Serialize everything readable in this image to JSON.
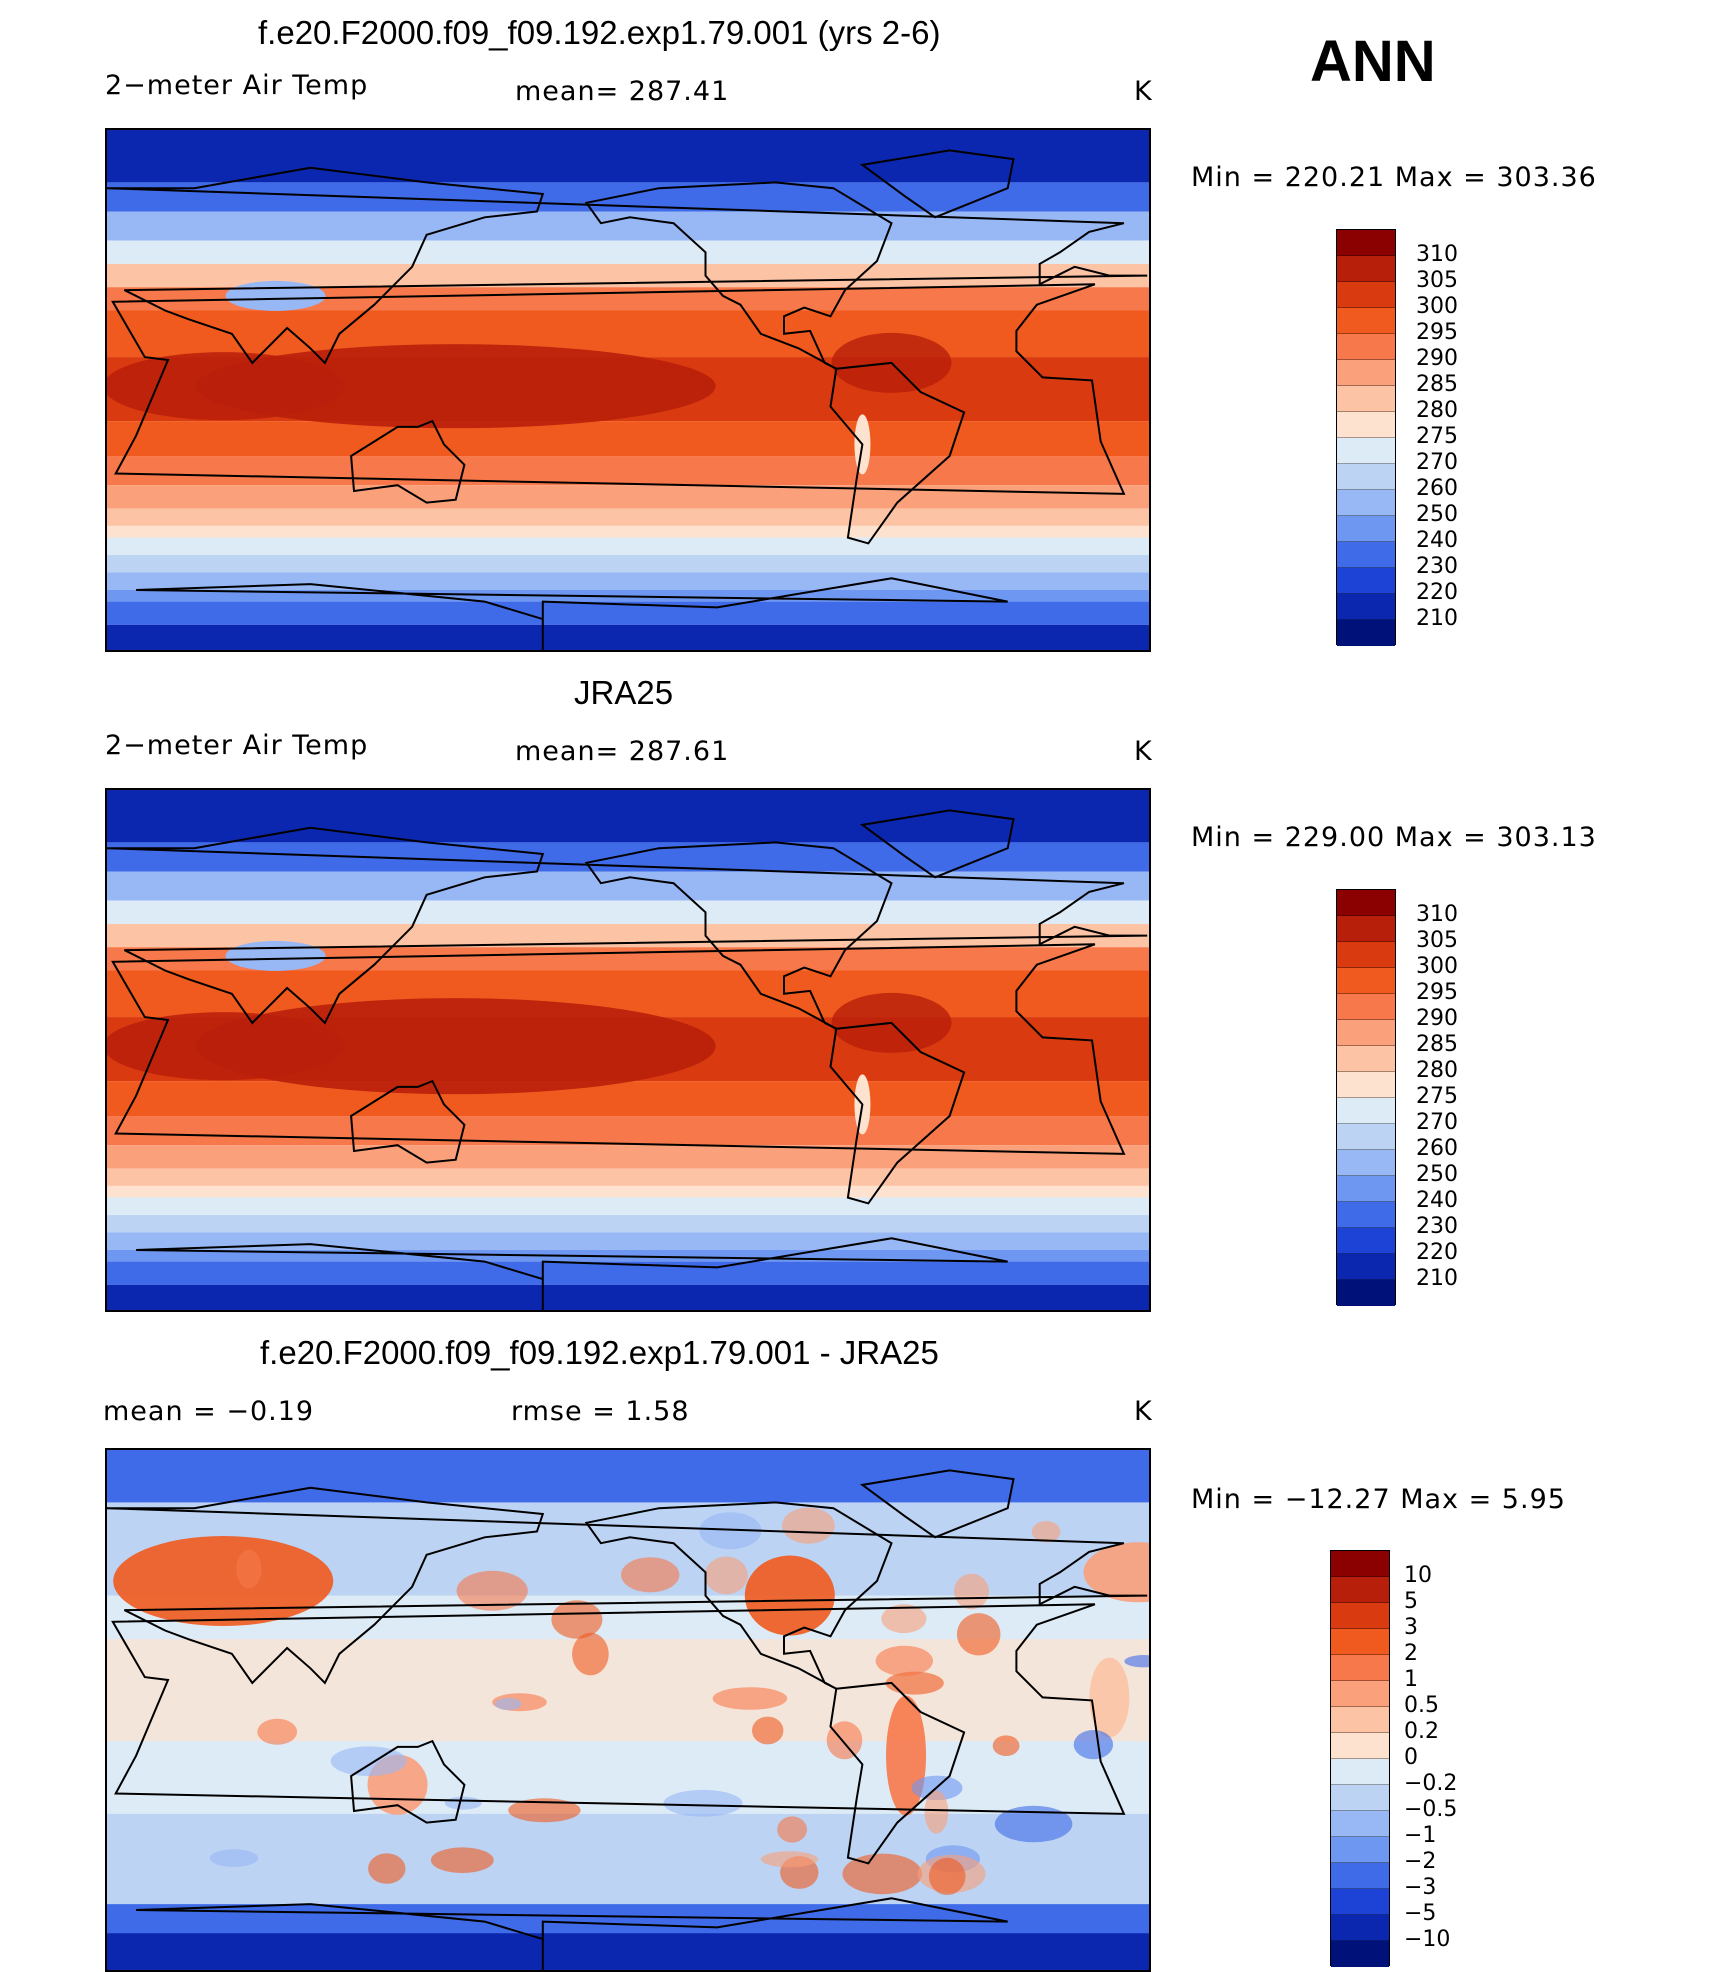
{
  "season_label": "ANN",
  "panels": [
    {
      "id": "model",
      "title": "f.e20.F2000.f09_f09.192.exp1.79.001 (yrs 2-6)",
      "left_label": "2−meter Air Temp",
      "center_label": "mean=  287.41",
      "units": "K",
      "minmax": "Min  =  220.21  Max  =  303.36",
      "legend_levels": [
        "310",
        "305",
        "300",
        "295",
        "290",
        "285",
        "280",
        "275",
        "270",
        "260",
        "250",
        "240",
        "230",
        "220",
        "210"
      ]
    },
    {
      "id": "obs",
      "title": "JRA25",
      "left_label": "2−meter Air Temp",
      "center_label": "mean=  287.61",
      "units": "K",
      "minmax": "Min  =  229.00  Max  =  303.13",
      "legend_levels": [
        "310",
        "305",
        "300",
        "295",
        "290",
        "285",
        "280",
        "275",
        "270",
        "260",
        "250",
        "240",
        "230",
        "220",
        "210"
      ]
    },
    {
      "id": "diff",
      "title": "f.e20.F2000.f09_f09.192.exp1.79.001 - JRA25",
      "left_label": "mean =    −0.19",
      "center_label": "rmse =     1.58",
      "units": "K",
      "minmax": "Min  =  −12.27  Max  =      5.95",
      "legend_levels": [
        "10",
        "5",
        "3",
        "2",
        "1",
        "0.5",
        "0.2",
        "0",
        "−0.2",
        "−0.5",
        "−1",
        "−2",
        "−3",
        "−5",
        "−10"
      ]
    }
  ],
  "colors": {
    "scale": [
      "#8b0000",
      "#b81f0a",
      "#d93a0f",
      "#f05a1e",
      "#f7784a",
      "#faa07a",
      "#fcc3a4",
      "#fde3cf",
      "#ddebf7",
      "#bcd3f3",
      "#98b8f5",
      "#6e97f2",
      "#3f6ae8",
      "#1d43d6",
      "#0b27b0",
      "#00127a"
    ]
  },
  "chart_data": [
    {
      "type": "heatmap",
      "title": "f.e20.F2000.f09_f09.192.exp1.79.001 (yrs 2-6)",
      "variable": "2-meter Air Temp",
      "units": "K",
      "mean": 287.41,
      "min": 220.21,
      "max": 303.36,
      "contour_levels": [
        210,
        220,
        230,
        240,
        250,
        260,
        270,
        275,
        280,
        285,
        290,
        295,
        300,
        305,
        310
      ]
    },
    {
      "type": "heatmap",
      "title": "JRA25",
      "variable": "2-meter Air Temp",
      "units": "K",
      "mean": 287.61,
      "min": 229.0,
      "max": 303.13,
      "contour_levels": [
        210,
        220,
        230,
        240,
        250,
        260,
        270,
        275,
        280,
        285,
        290,
        295,
        300,
        305,
        310
      ]
    },
    {
      "type": "heatmap",
      "title": "f.e20.F2000.f09_f09.192.exp1.79.001 - JRA25",
      "units": "K",
      "mean": -0.19,
      "rmse": 1.58,
      "min": -12.27,
      "max": 5.95,
      "contour_levels": [
        -10,
        -5,
        -3,
        -2,
        -1,
        -0.5,
        -0.2,
        0,
        0.2,
        0.5,
        1,
        2,
        3,
        5,
        10
      ]
    }
  ]
}
